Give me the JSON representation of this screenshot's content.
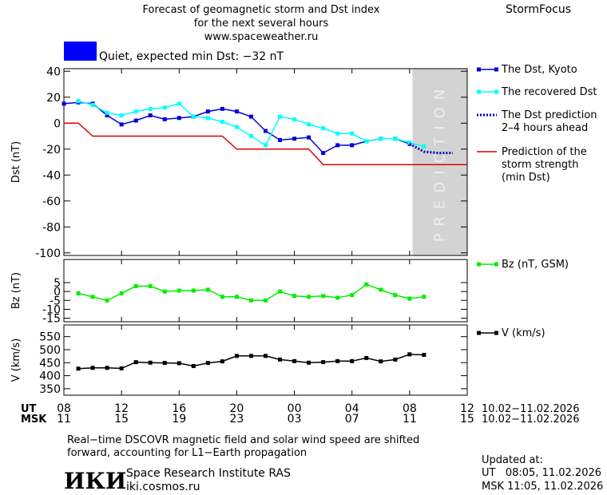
{
  "header": {
    "title": [
      "Forecast of geomagnetic storm and Dst index",
      "for the next several hours",
      "www.spaceweather.ru"
    ],
    "brand": "StormFocus"
  },
  "chart_data": [
    {
      "type": "line",
      "ylabel": "Dst (nT)",
      "xlim": [
        0,
        28
      ],
      "ylim": [
        -102,
        42
      ],
      "yticks": [
        40,
        20,
        0,
        -20,
        -40,
        -60,
        -80,
        -100
      ],
      "status": {
        "text": "Quiet, expected min Dst: −32 nT",
        "color": "#0000ff"
      },
      "prediction_zone": [
        24.2,
        28
      ],
      "prediction_label": "PREDICTION",
      "series": [
        {
          "name": "The Dst, Kyoto",
          "color": "#0000dd",
          "marker": "square",
          "style": "solid",
          "x": [
            0,
            1,
            2,
            3,
            4,
            5,
            6,
            7,
            8,
            9,
            10,
            11,
            12,
            13,
            14,
            15,
            16,
            17,
            18,
            19,
            20,
            21,
            22,
            23,
            24
          ],
          "values": [
            15,
            16,
            15,
            6,
            -1,
            2,
            6,
            3,
            4,
            5,
            9,
            11,
            9,
            5,
            -6,
            -13,
            -12,
            -11,
            -23,
            -17,
            -17,
            -14,
            -12,
            -12,
            -16
          ]
        },
        {
          "name": "The recovered Dst",
          "color": "#00ffff",
          "marker": "square",
          "style": "solid",
          "x": [
            1,
            2,
            3,
            4,
            5,
            6,
            7,
            8,
            9,
            10,
            11,
            12,
            13,
            14,
            15,
            16,
            17,
            18,
            19,
            20,
            21,
            22,
            23,
            24,
            25
          ],
          "values": [
            17,
            14,
            8,
            6,
            9,
            11,
            12,
            15,
            5,
            4,
            1,
            -3,
            -10,
            -17,
            5,
            3,
            -1,
            -4,
            -8,
            -8,
            -14,
            -12,
            -12,
            -15,
            -18
          ]
        },
        {
          "name": "The Dst prediction\n2–4 hours ahead",
          "color": "#0000cc",
          "marker": "none",
          "style": "dotted",
          "x": [
            24,
            25,
            26,
            27
          ],
          "values": [
            -16,
            -22,
            -23,
            -23
          ]
        },
        {
          "name": "Prediction of the\nstorm strength\n(min Dst)",
          "color": "#dd0000",
          "marker": "none",
          "style": "solid",
          "x": [
            0,
            1,
            2,
            11,
            12,
            17,
            18,
            28
          ],
          "values": [
            0,
            0,
            -10,
            -10,
            -20,
            -20,
            -32,
            -32
          ]
        }
      ]
    },
    {
      "type": "line",
      "ylabel": "Bz (nT)",
      "xlim": [
        0,
        28
      ],
      "ylim": [
        -17,
        18
      ],
      "yticks": [
        5,
        0,
        -5,
        -10,
        -15
      ],
      "series": [
        {
          "name": "Bz (nT, GSM)",
          "color": "#00ee00",
          "marker": "square",
          "style": "solid",
          "x": [
            1,
            2,
            3,
            4,
            5,
            6,
            7,
            8,
            9,
            10,
            11,
            12,
            13,
            14,
            15,
            16,
            17,
            18,
            19,
            20,
            21,
            22,
            23,
            24,
            25
          ],
          "values": [
            -1,
            -3,
            -5,
            -1,
            3,
            3,
            0,
            0.5,
            0.5,
            1,
            -3,
            -3,
            -5,
            -5,
            0,
            -2.5,
            -3,
            -2.5,
            -3.5,
            -2,
            4,
            1,
            -2,
            -4,
            -3
          ]
        }
      ]
    },
    {
      "type": "line",
      "ylabel": "V (km/s)",
      "xlim": [
        0,
        28
      ],
      "ylim": [
        325,
        595
      ],
      "yticks": [
        550,
        500,
        450,
        400,
        350
      ],
      "series": [
        {
          "name": "V (km/s)",
          "color": "#000000",
          "marker": "square",
          "style": "solid",
          "x": [
            1,
            2,
            3,
            4,
            5,
            6,
            7,
            8,
            9,
            10,
            11,
            12,
            13,
            14,
            15,
            16,
            17,
            18,
            19,
            20,
            21,
            22,
            23,
            24,
            25
          ],
          "values": [
            427,
            430,
            430,
            428,
            452,
            450,
            449,
            448,
            437,
            449,
            455,
            476,
            476,
            476,
            462,
            456,
            450,
            452,
            456,
            456,
            468,
            455,
            462,
            482,
            480
          ]
        }
      ],
      "x_rows": [
        "UT",
        "MSK"
      ],
      "x_dates": [
        "10.02−11.02.2026",
        "10.02−11.02.2026"
      ],
      "xticks": [
        {
          "value": 0,
          "label": "08"
        },
        {
          "value": 4,
          "label": "12"
        },
        {
          "value": 8,
          "label": "16"
        },
        {
          "value": 12,
          "label": "20"
        },
        {
          "value": 16,
          "label": "00"
        },
        {
          "value": 20,
          "label": "04"
        },
        {
          "value": 24,
          "label": "08"
        },
        {
          "value": 28,
          "label": "12"
        }
      ],
      "msk_ticks": [
        {
          "value": 0,
          "label": "11"
        },
        {
          "value": 4,
          "label": "15"
        },
        {
          "value": 8,
          "label": "19"
        },
        {
          "value": 12,
          "label": "23"
        },
        {
          "value": 16,
          "label": "03"
        },
        {
          "value": 20,
          "label": "07"
        },
        {
          "value": 24,
          "label": "11"
        },
        {
          "value": 28,
          "label": "15"
        }
      ]
    }
  ],
  "footer": {
    "note": [
      "Real−time DSCOVR magnetic field and solar wind speed are shifted",
      "forward, accounting for L1−Earth propagation"
    ],
    "logo": "ИКИ",
    "institute": "Space Research Institute RAS",
    "site": "iki.cosmos.ru",
    "updated": "Updated at:",
    "updated_ut": "UT   08:05, 11.02.2026",
    "updated_msk": "MSK 11:05, 11.02.2026"
  }
}
